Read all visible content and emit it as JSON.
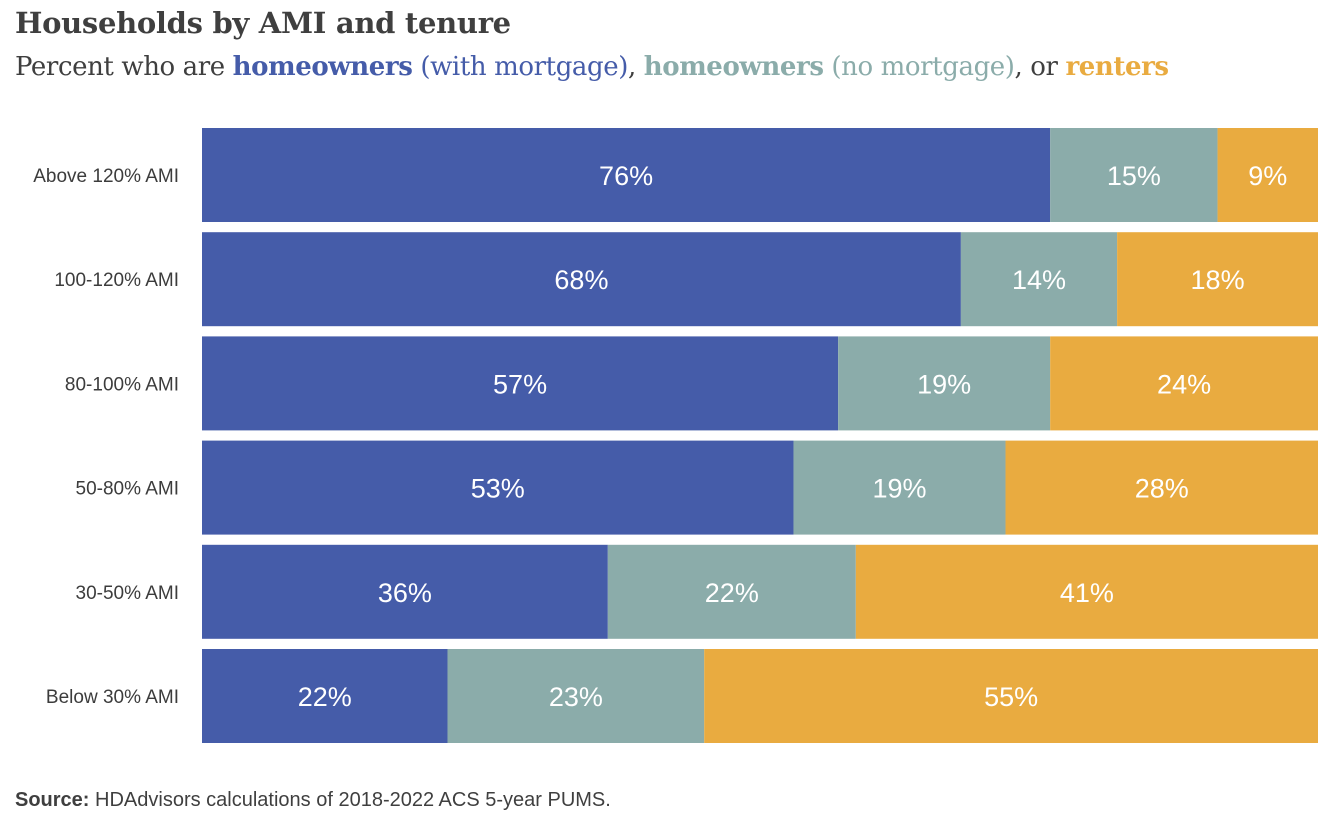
{
  "title": "Households by AMI and tenure",
  "subtitle": {
    "prefix": "Percent who are ",
    "s1_bold": "homeowners",
    "s1_rest": " (with mortgage)",
    "sep1": ", ",
    "s2_bold": "homeowners",
    "s2_rest": " (no mortgage)",
    "sep2": ", or ",
    "s3_bold": "renters"
  },
  "colors": {
    "with_mortgage": "#455ca9",
    "no_mortgage": "#8bacaa",
    "renters": "#e9ab40"
  },
  "chart_data": {
    "type": "bar",
    "orientation": "horizontal",
    "stacked": true,
    "xlim": [
      0,
      100
    ],
    "categories": [
      "Above 120% AMI",
      "100-120% AMI",
      "80-100% AMI",
      "50-80% AMI",
      "30-50% AMI",
      "Below 30% AMI"
    ],
    "series": [
      {
        "values": [
          76,
          68,
          57,
          53,
          36,
          22
        ],
        "labels": [
          "76%",
          "68%",
          "57%",
          "53%",
          "36%",
          "22%"
        ],
        "color": "#455ca9"
      },
      {
        "values": [
          15,
          14,
          19,
          19,
          22,
          23
        ],
        "labels": [
          "15%",
          "14%",
          "19%",
          "19%",
          "22%",
          "23%"
        ],
        "color": "#8bacaa"
      },
      {
        "values": [
          9,
          18,
          24,
          28,
          41,
          55
        ],
        "labels": [
          "9%",
          "18%",
          "24%",
          "28%",
          "41%",
          "55%"
        ],
        "color": "#e9ab40"
      }
    ],
    "legend": "none",
    "grid": false
  },
  "source": {
    "label": "Source:",
    "text": " HDAdvisors  calculations of 2018-2022  ACS 5-year PUMS."
  }
}
